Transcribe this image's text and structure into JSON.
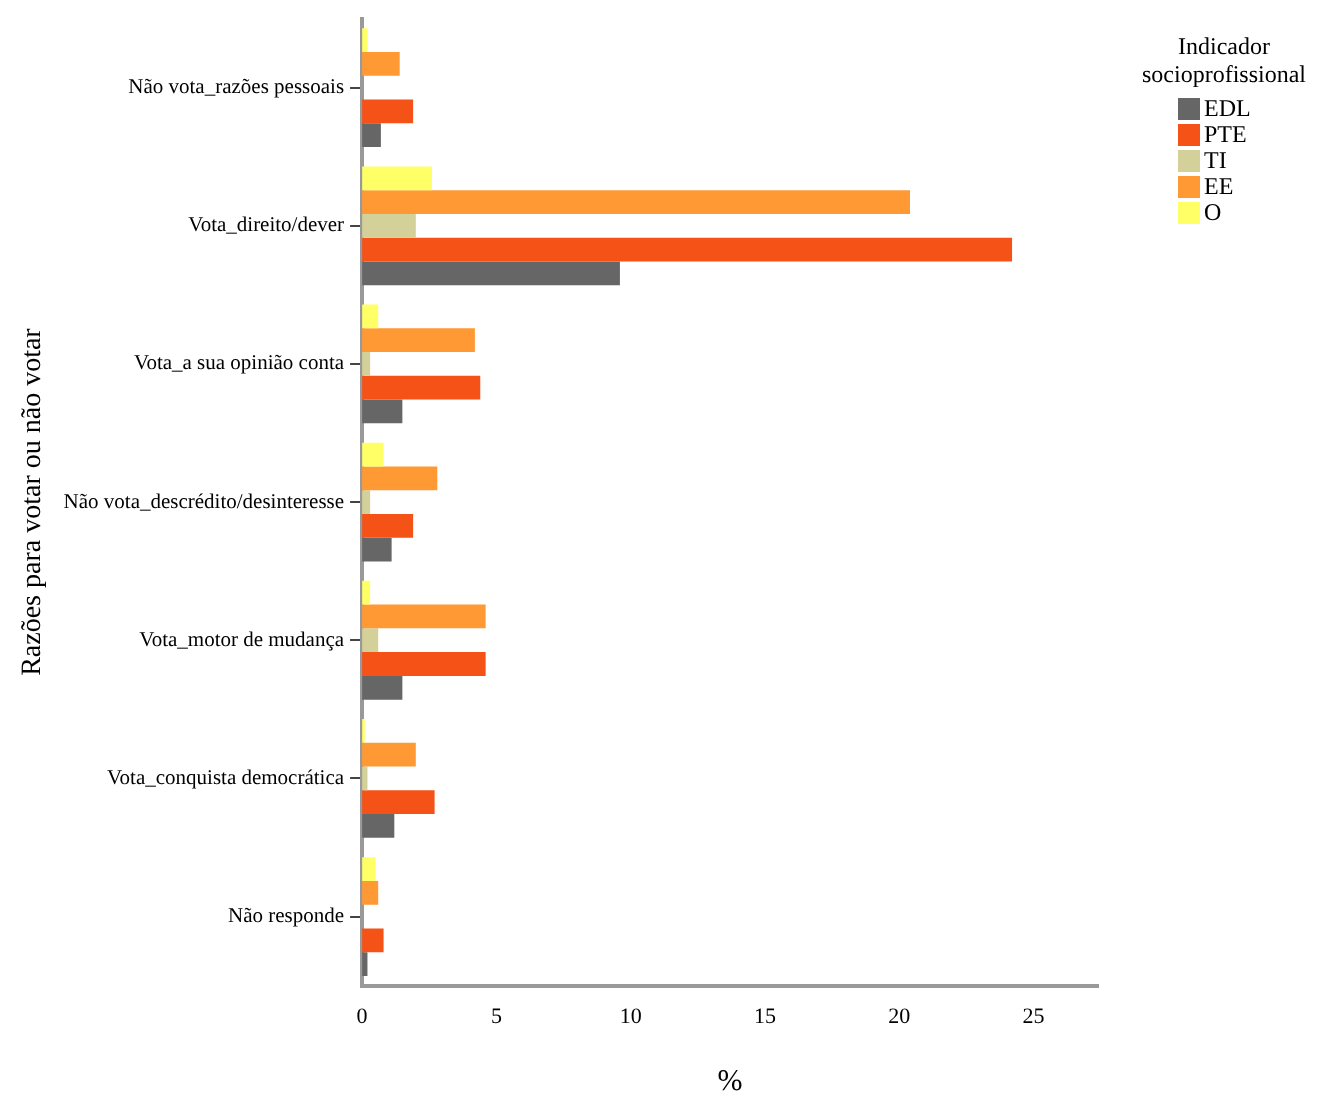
{
  "chart_data": {
    "type": "bar",
    "orientation": "horizontal",
    "xlabel": "%",
    "ylabel": "Razões para votar ou não votar",
    "legend_title": "Indicador socioprofissional",
    "legend": "top right",
    "categories": [
      "Não vota_razões pessoais",
      "Vota_direito/dever",
      "Vota_a sua opinião conta",
      "Não vota_descrédito/desinteresse",
      "Vota_motor de mudança",
      "Vota_conquista democrática",
      "Não responde"
    ],
    "series": [
      {
        "name": "EDL",
        "color": "#666666",
        "values": [
          0.7,
          9.6,
          1.5,
          1.1,
          1.5,
          1.2,
          0.2
        ]
      },
      {
        "name": "PTE",
        "color": "#f45216",
        "values": [
          1.9,
          24.2,
          4.4,
          1.9,
          4.6,
          2.7,
          0.8
        ]
      },
      {
        "name": "TI",
        "color": "#d4d09a",
        "values": [
          null,
          2.0,
          0.3,
          0.3,
          0.6,
          0.2,
          null
        ]
      },
      {
        "name": "EE",
        "color": "#ff9933",
        "values": [
          1.4,
          20.4,
          4.2,
          2.8,
          4.6,
          2.0,
          0.6
        ]
      },
      {
        "name": "O",
        "color": "#ffff66",
        "values": [
          0.2,
          2.6,
          0.6,
          0.8,
          0.3,
          0.1,
          0.5
        ]
      }
    ],
    "xlim": [
      0,
      27.4
    ],
    "xticks": [
      0,
      5,
      10,
      15,
      20,
      25
    ],
    "grid": false
  }
}
